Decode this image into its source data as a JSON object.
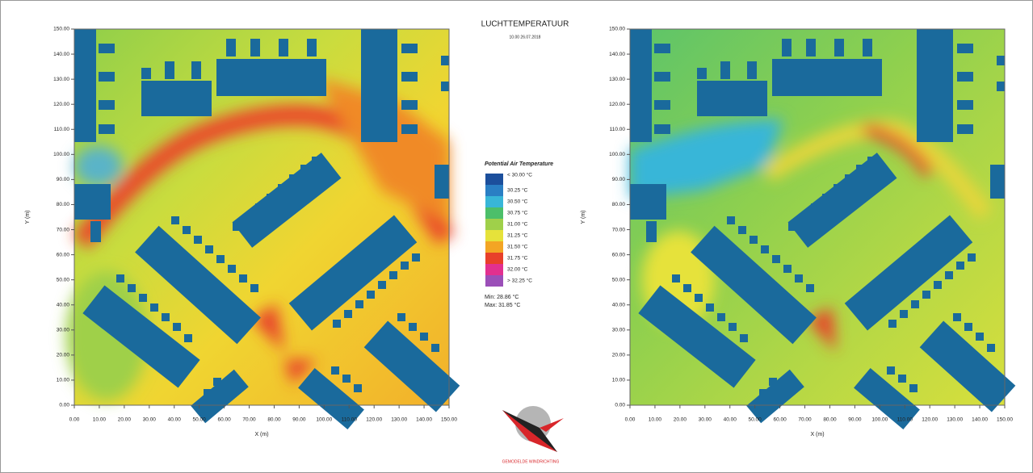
{
  "header": {
    "title": "LUCHTTEMPERATUUR",
    "subtitle": "10.00 26.07.2018"
  },
  "legend": {
    "title": "Potential Air Temperature",
    "items": [
      {
        "label": "< 30.00 °C",
        "color": "#1c4f9c"
      },
      {
        "label": "30.25 °C",
        "color": "#2a7fc4"
      },
      {
        "label": "30.50 °C",
        "color": "#38b6d8"
      },
      {
        "label": "30.75 °C",
        "color": "#4cbf6a"
      },
      {
        "label": "31.00 °C",
        "color": "#9fd04a"
      },
      {
        "label": "31.25 °C",
        "color": "#e6e23a"
      },
      {
        "label": "31.50 °C",
        "color": "#f3a524"
      },
      {
        "label": "31.75 °C",
        "color": "#e8402a"
      },
      {
        "label": "32.00 °C",
        "color": "#e2308f"
      },
      {
        "label": "> 32.25 °C",
        "color": "#9b4fb8"
      }
    ],
    "min": "Min: 28.86 °C",
    "max": "Max: 31.85 °C"
  },
  "maps": [
    {
      "x_label": "X (m)",
      "y_label": "Y (m)",
      "xticks": [
        "0.00",
        "10.00",
        "20.00",
        "30.00",
        "40.00",
        "50.00",
        "60.00",
        "70.00",
        "80.00",
        "90.00",
        "100.00",
        "110.00",
        "120.00",
        "130.00",
        "140.00",
        "150.00"
      ],
      "yticks": [
        "0.00",
        "10.00",
        "20.00",
        "30.00",
        "40.00",
        "50.00",
        "60.00",
        "70.00",
        "80.00",
        "90.00",
        "100.00",
        "110.00",
        "120.00",
        "130.00",
        "140.00",
        "150.00"
      ]
    },
    {
      "x_label": "X (m)",
      "y_label": "Y (m)",
      "xticks": [
        "0.00",
        "10.00",
        "20.00",
        "30.00",
        "40.00",
        "50.00",
        "60.00",
        "70.00",
        "80.00",
        "90.00",
        "100.00",
        "110.00",
        "120.00",
        "130.00",
        "140.00",
        "150.00"
      ],
      "yticks": [
        "0.00",
        "10.00",
        "20.00",
        "30.00",
        "40.00",
        "50.00",
        "60.00",
        "70.00",
        "80.00",
        "90.00",
        "100.00",
        "110.00",
        "120.00",
        "130.00",
        "140.00",
        "150.00"
      ]
    }
  ],
  "logo": {
    "caption": "GEMODELDE WINDRICHTING"
  }
}
